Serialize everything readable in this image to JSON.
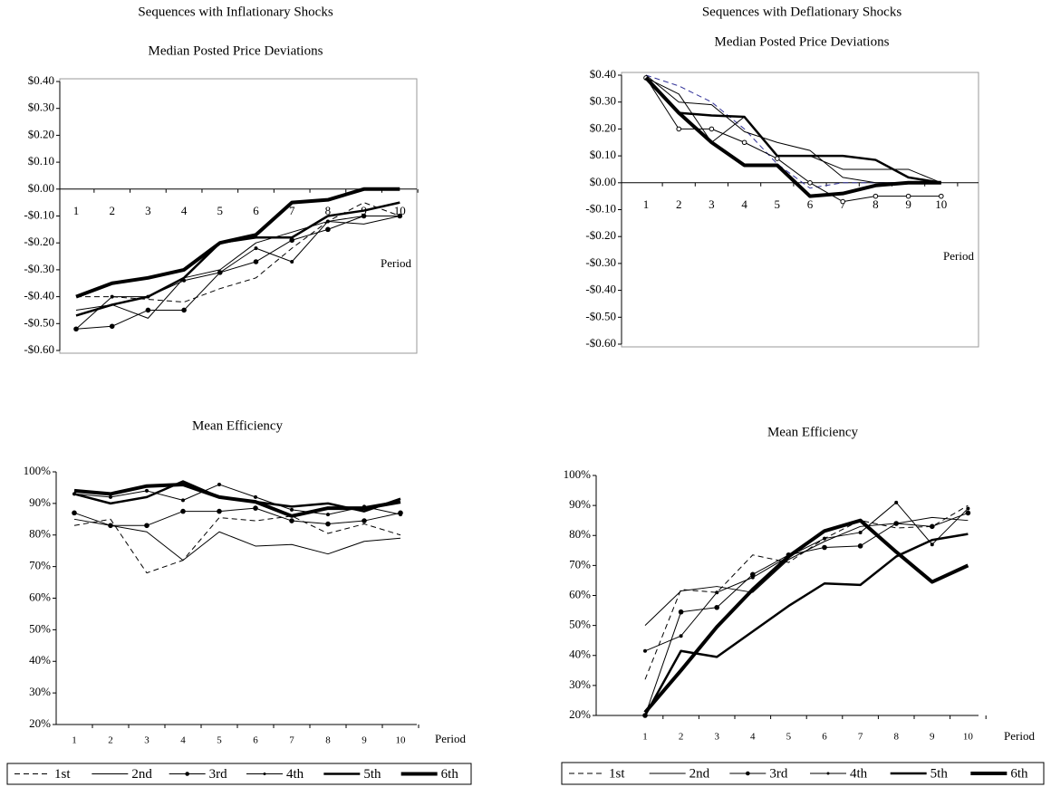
{
  "chart_data": [
    {
      "type": "line",
      "title": "Sequences with Inflationary Shocks",
      "subtitle": "Median Posted Price Deviations",
      "categories": [
        "1",
        "2",
        "3",
        "4",
        "5",
        "6",
        "7",
        "8",
        "9",
        "10"
      ],
      "x_label": "Period",
      "ylim": [
        -0.6,
        0.4
      ],
      "yticks": [
        {
          "value": 0.4,
          "label": "$0.40"
        },
        {
          "value": 0.3,
          "label": "$0.30"
        },
        {
          "value": 0.2,
          "label": "$0.20"
        },
        {
          "value": 0.1,
          "label": "$0.10"
        },
        {
          "value": 0,
          "label": "$0.00"
        },
        {
          "value": -0.1,
          "label": "-$0.10"
        },
        {
          "value": -0.2,
          "label": "-$0.20"
        },
        {
          "value": -0.3,
          "label": "-$0.30"
        },
        {
          "value": -0.4,
          "label": "-$0.40"
        },
        {
          "value": -0.5,
          "label": "-$0.50"
        },
        {
          "value": -0.6,
          "label": "-$0.60"
        }
      ],
      "series": [
        {
          "color": "#000000",
          "width": 1,
          "dash": true,
          "marker": "none",
          "values": [
            -0.4,
            -0.4,
            -0.41,
            -0.42,
            -0.37,
            -0.33,
            -0.22,
            -0.12,
            -0.05,
            -0.1
          ]
        },
        {
          "color": "#000000",
          "width": 1,
          "dash": false,
          "marker": "none",
          "values": [
            -0.45,
            -0.43,
            -0.48,
            -0.33,
            -0.3,
            -0.2,
            -0.16,
            -0.12,
            -0.13,
            -0.1
          ]
        },
        {
          "color": "#000000",
          "width": 1,
          "dash": false,
          "marker": "dot",
          "values": [
            -0.52,
            -0.51,
            -0.45,
            -0.45,
            -0.31,
            -0.27,
            -0.19,
            -0.15,
            -0.1,
            -0.1
          ]
        },
        {
          "color": "#000000",
          "width": 1,
          "dash": false,
          "marker": "small",
          "values": [
            -0.52,
            -0.4,
            -0.4,
            -0.34,
            -0.31,
            -0.22,
            -0.27,
            -0.12,
            -0.1,
            -0.1
          ]
        },
        {
          "color": "#000000",
          "width": 2.5,
          "dash": false,
          "marker": "none",
          "values": [
            -0.47,
            -0.43,
            -0.4,
            -0.33,
            -0.2,
            -0.18,
            -0.18,
            -0.1,
            -0.08,
            -0.05
          ]
        },
        {
          "color": "#000000",
          "width": 4,
          "dash": false,
          "marker": "none",
          "values": [
            -0.4,
            -0.35,
            -0.33,
            -0.3,
            -0.2,
            -0.17,
            -0.05,
            -0.04,
            0,
            0
          ]
        }
      ]
    },
    {
      "type": "line",
      "title": "Sequences with Deflationary Shocks",
      "subtitle": "Median Posted Price Deviations",
      "categories": [
        "1",
        "2",
        "3",
        "4",
        "5",
        "6",
        "7",
        "8",
        "9",
        "10"
      ],
      "x_label": "Period",
      "ylim": [
        -0.6,
        0.4
      ],
      "yticks": [
        {
          "value": 0.4,
          "label": "$0.40"
        },
        {
          "value": 0.3,
          "label": "$0.30"
        },
        {
          "value": 0.2,
          "label": "$0.20"
        },
        {
          "value": 0.1,
          "label": "$0.10"
        },
        {
          "value": 0,
          "label": "$0.00"
        },
        {
          "value": -0.1,
          "label": "-$0.10"
        },
        {
          "value": -0.2,
          "label": "-$0.20"
        },
        {
          "value": -0.3,
          "label": "-$0.30"
        },
        {
          "value": -0.4,
          "label": "-$0.40"
        },
        {
          "value": -0.5,
          "label": "-$0.50"
        },
        {
          "value": -0.6,
          "label": "-$0.60"
        }
      ],
      "series": [
        {
          "color": "#333399",
          "width": 1,
          "dash": true,
          "marker": "none",
          "values": [
            0.4,
            0.36,
            0.3,
            0.2,
            0.07,
            -0.02,
            0,
            0,
            0,
            0
          ]
        },
        {
          "color": "#000000",
          "width": 1,
          "dash": false,
          "marker": "none",
          "values": [
            0.4,
            0.3,
            0.29,
            0.19,
            0.15,
            0.12,
            0.02,
            0,
            0,
            0
          ]
        },
        {
          "color": "#000000",
          "width": 1,
          "dash": false,
          "marker": "open",
          "values": [
            0.39,
            0.2,
            0.2,
            0.15,
            0.09,
            0,
            -0.07,
            -0.05,
            -0.05,
            -0.05
          ]
        },
        {
          "color": "#000000",
          "width": 1,
          "dash": false,
          "marker": "none",
          "values": [
            0.39,
            0.33,
            0.15,
            0.245,
            0.1,
            0.1,
            0.05,
            0.05,
            0.05,
            0
          ]
        },
        {
          "color": "#000000",
          "width": 2.5,
          "dash": false,
          "marker": "none",
          "values": [
            0.39,
            0.26,
            0.25,
            0.245,
            0.1,
            0.1,
            0.1,
            0.085,
            0.02,
            0
          ]
        },
        {
          "color": "#000000",
          "width": 4,
          "dash": false,
          "marker": "none",
          "values": [
            0.39,
            0.26,
            0.15,
            0.065,
            0.065,
            -0.05,
            -0.04,
            -0.01,
            0,
            0
          ]
        }
      ]
    },
    {
      "type": "line",
      "title": "Mean Efficiency",
      "categories": [
        "1",
        "2",
        "3",
        "4",
        "5",
        "6",
        "7",
        "8",
        "9",
        "10"
      ],
      "x_label": "Period",
      "ylim": [
        20,
        100
      ],
      "yticks": [
        {
          "value": 100,
          "label": "100%"
        },
        {
          "value": 90,
          "label": "90%"
        },
        {
          "value": 80,
          "label": "80%"
        },
        {
          "value": 70,
          "label": "70%"
        },
        {
          "value": 60,
          "label": "60%"
        },
        {
          "value": 50,
          "label": "50%"
        },
        {
          "value": 40,
          "label": "40%"
        },
        {
          "value": 30,
          "label": "30%"
        },
        {
          "value": 20,
          "label": "20%"
        }
      ],
      "series": [
        {
          "name": "1st",
          "color": "#000000",
          "width": 1,
          "dash": true,
          "marker": "none",
          "values": [
            83,
            85,
            68,
            72,
            85.5,
            84.5,
            86,
            80.5,
            83.5,
            80
          ]
        },
        {
          "name": "2nd",
          "color": "#000000",
          "width": 1,
          "dash": false,
          "marker": "none",
          "values": [
            85,
            83,
            81,
            72,
            81,
            76.5,
            77,
            74,
            78,
            79
          ]
        },
        {
          "name": "3rd",
          "color": "#000000",
          "width": 1,
          "dash": false,
          "marker": "dot",
          "values": [
            87,
            83,
            83,
            87.5,
            87.5,
            88.5,
            84.5,
            83.5,
            84.5,
            87
          ]
        },
        {
          "name": "4th",
          "color": "#000000",
          "width": 1,
          "dash": false,
          "marker": "small",
          "values": [
            93,
            92,
            94,
            91,
            96,
            92,
            88,
            86.5,
            89,
            86.5
          ]
        },
        {
          "name": "5th",
          "color": "#000000",
          "width": 2.5,
          "dash": false,
          "marker": "none",
          "values": [
            93,
            90,
            92,
            97,
            92,
            90.5,
            89,
            90,
            87.5,
            91.5
          ]
        },
        {
          "name": "6th",
          "color": "#000000",
          "width": 4,
          "dash": false,
          "marker": "none",
          "values": [
            94,
            93,
            95.5,
            96,
            92,
            90.5,
            86,
            88.5,
            88.5,
            90.5
          ]
        }
      ]
    },
    {
      "type": "line",
      "title": "Mean Efficiency",
      "categories": [
        "1",
        "2",
        "3",
        "4",
        "5",
        "6",
        "7",
        "8",
        "9",
        "10"
      ],
      "x_label": "Period",
      "ylim": [
        20,
        100
      ],
      "yticks": [
        {
          "value": 100,
          "label": "100%"
        },
        {
          "value": 90,
          "label": "90%"
        },
        {
          "value": 80,
          "label": "80%"
        },
        {
          "value": 70,
          "label": "70%"
        },
        {
          "value": 60,
          "label": "60%"
        },
        {
          "value": 50,
          "label": "50%"
        },
        {
          "value": 40,
          "label": "40%"
        },
        {
          "value": 30,
          "label": "30%"
        },
        {
          "value": 20,
          "label": "20%"
        }
      ],
      "series": [
        {
          "name": "1st",
          "color": "#000000",
          "width": 1,
          "dash": true,
          "marker": "none",
          "values": [
            32,
            62,
            61,
            73.5,
            71,
            79,
            85,
            82.5,
            83,
            90
          ]
        },
        {
          "name": "2nd",
          "color": "#000000",
          "width": 1,
          "dash": false,
          "marker": "none",
          "values": [
            50,
            61.5,
            63,
            61,
            72,
            78,
            83,
            84,
            86,
            85
          ]
        },
        {
          "name": "3rd",
          "color": "#000000",
          "width": 1,
          "dash": false,
          "marker": "dot",
          "values": [
            20,
            54.5,
            56,
            67,
            73.5,
            76,
            76.5,
            84,
            83,
            87.5
          ]
        },
        {
          "name": "4th",
          "color": "#000000",
          "width": 1,
          "dash": false,
          "marker": "small",
          "values": [
            41.5,
            46.5,
            61,
            66,
            73,
            79,
            81,
            91,
            77,
            89
          ]
        },
        {
          "name": "5th",
          "color": "#000000",
          "width": 2.5,
          "dash": false,
          "marker": "none",
          "values": [
            20,
            41.5,
            39.5,
            48,
            56.5,
            64,
            63.5,
            73,
            78.5,
            80.5
          ]
        },
        {
          "name": "6th",
          "color": "#000000",
          "width": 4,
          "dash": false,
          "marker": "none",
          "values": [
            21,
            35,
            49.5,
            62,
            73,
            81.5,
            85,
            74.5,
            64.5,
            70
          ]
        }
      ]
    }
  ]
}
